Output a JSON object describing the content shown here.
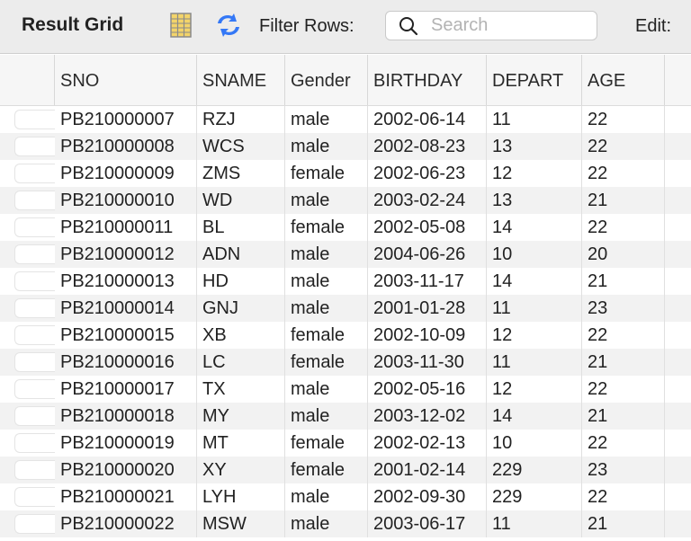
{
  "toolbar": {
    "title": "Result Grid",
    "filter_label": "Filter Rows:",
    "search_placeholder": "Search",
    "search_value": "",
    "edit_label": "Edit:",
    "grid_icon": "grid-view-icon",
    "refresh_icon": "refresh-icon",
    "search_icon": "search-icon"
  },
  "grid": {
    "columns": [
      "SNO",
      "SNAME",
      "Gender",
      "BIRTHDAY",
      "DEPART",
      "AGE"
    ],
    "rows": [
      [
        "PB210000007",
        "RZJ",
        "male",
        "2002-06-14",
        "11",
        "22"
      ],
      [
        "PB210000008",
        "WCS",
        "male",
        "2002-08-23",
        "13",
        "22"
      ],
      [
        "PB210000009",
        "ZMS",
        "female",
        "2002-06-23",
        "12",
        "22"
      ],
      [
        "PB210000010",
        "WD",
        "male",
        "2003-02-24",
        "13",
        "21"
      ],
      [
        "PB210000011",
        "BL",
        "female",
        "2002-05-08",
        "14",
        "22"
      ],
      [
        "PB210000012",
        "ADN",
        "male",
        "2004-06-26",
        "10",
        "20"
      ],
      [
        "PB210000013",
        "HD",
        "male",
        "2003-11-17",
        "14",
        "21"
      ],
      [
        "PB210000014",
        "GNJ",
        "male",
        "2001-01-28",
        "11",
        "23"
      ],
      [
        "PB210000015",
        "XB",
        "female",
        "2002-10-09",
        "12",
        "22"
      ],
      [
        "PB210000016",
        "LC",
        "female",
        "2003-11-30",
        "11",
        "21"
      ],
      [
        "PB210000017",
        "TX",
        "male",
        "2002-05-16",
        "12",
        "22"
      ],
      [
        "PB210000018",
        "MY",
        "male",
        "2003-12-02",
        "14",
        "21"
      ],
      [
        "PB210000019",
        "MT",
        "female",
        "2002-02-13",
        "10",
        "22"
      ],
      [
        "PB210000020",
        "XY",
        "female",
        "2001-02-14",
        "229",
        "23"
      ],
      [
        "PB210000021",
        "LYH",
        "male",
        "2002-09-30",
        "229",
        "22"
      ],
      [
        "PB210000022",
        "MSW",
        "male",
        "2003-06-17",
        "11",
        "21"
      ]
    ]
  },
  "colors": {
    "toolbar_bg": "#ececec",
    "header_bg": "#f6f6f6",
    "row_alt_bg": "#f2f2f2",
    "refresh_icon_blue": "#3478f6"
  }
}
